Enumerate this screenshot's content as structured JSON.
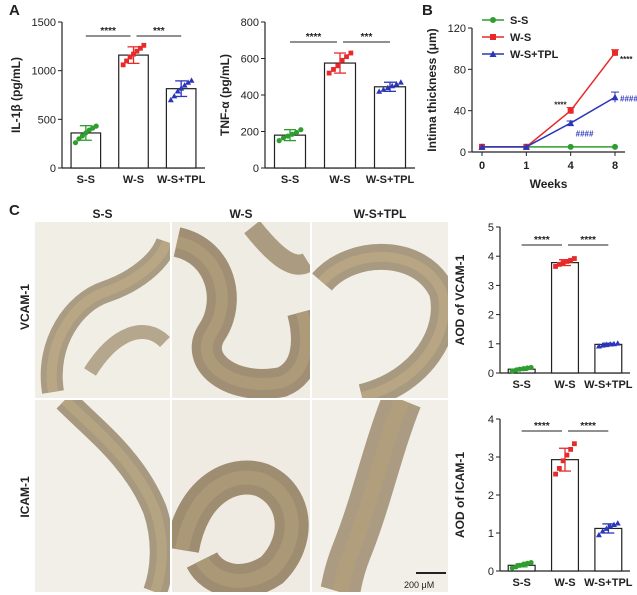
{
  "panels": {
    "a": "A",
    "b": "B",
    "c": "C"
  },
  "micrographs": {
    "columns": [
      "S-S",
      "W-S",
      "W-S+TPL"
    ],
    "rows": [
      "VCAM-1",
      "ICAM-1"
    ],
    "scale_bar": "200 μM"
  },
  "chart_data": [
    {
      "id": "il1b",
      "type": "bar",
      "ylabel": "IL-1β (pg/mL)",
      "categories": [
        "S-S",
        "W-S",
        "W-S+TPL"
      ],
      "values": [
        360,
        1160,
        815
      ],
      "errors": [
        75,
        85,
        80
      ],
      "points": [
        [
          260,
          300,
          330,
          360,
          390,
          410,
          430
        ],
        [
          1060,
          1100,
          1140,
          1170,
          1200,
          1230,
          1260
        ],
        [
          700,
          740,
          790,
          820,
          850,
          880,
          900
        ]
      ],
      "colors": [
        "#2e9e2e",
        "#e8292a",
        "#2b36b8"
      ],
      "ylim": [
        0,
        1500
      ],
      "yticks": [
        0,
        500,
        1000,
        1500
      ],
      "significance": [
        {
          "from": 0,
          "to": 1,
          "label": "****"
        },
        {
          "from": 1,
          "to": 2,
          "label": "***"
        }
      ]
    },
    {
      "id": "tnfa",
      "type": "bar",
      "ylabel": "TNF-α (pg/mL)",
      "categories": [
        "S-S",
        "W-S",
        "W-S+TPL"
      ],
      "values": [
        180,
        575,
        445
      ],
      "errors": [
        30,
        55,
        25
      ],
      "points": [
        [
          150,
          165,
          175,
          185,
          195,
          210
        ],
        [
          520,
          540,
          560,
          590,
          610,
          630
        ],
        [
          420,
          430,
          440,
          450,
          460,
          470
        ]
      ],
      "colors": [
        "#2e9e2e",
        "#e8292a",
        "#2b36b8"
      ],
      "ylim": [
        0,
        800
      ],
      "yticks": [
        0,
        200,
        400,
        600,
        800
      ],
      "significance": [
        {
          "from": 0,
          "to": 1,
          "label": "****"
        },
        {
          "from": 1,
          "to": 2,
          "label": "***"
        }
      ]
    },
    {
      "id": "intima",
      "type": "line",
      "ylabel": "Intima thickness (μm)",
      "xlabel": "Weeks",
      "x": [
        "0",
        "1",
        "4",
        "8"
      ],
      "ylim": [
        0,
        120
      ],
      "yticks": [
        0,
        40,
        80,
        120
      ],
      "legend": "top-left",
      "series": [
        {
          "name": "S-S",
          "color": "#2e9e2e",
          "marker": "circle",
          "values": [
            5,
            5,
            5,
            5
          ],
          "errors": [
            0,
            0,
            0,
            0
          ]
        },
        {
          "name": "W-S",
          "color": "#e8292a",
          "marker": "square",
          "values": [
            5,
            5,
            40,
            96
          ],
          "errors": [
            0,
            0,
            3,
            3
          ]
        },
        {
          "name": "W-S+TPL",
          "color": "#2b36b8",
          "marker": "triangle",
          "values": [
            5,
            5,
            28,
            53
          ],
          "errors": [
            0,
            0,
            2,
            5
          ]
        }
      ],
      "annotations": [
        {
          "x": 2,
          "y": 46,
          "text": "****",
          "side": "left",
          "color": "#222"
        },
        {
          "x": 3,
          "y": 90,
          "text": "****",
          "side": "right",
          "color": "#222"
        },
        {
          "x": 2,
          "y": 18,
          "text": "####",
          "side": "right",
          "color": "#2b36b8"
        },
        {
          "x": 3,
          "y": 52,
          "text": "####",
          "side": "right",
          "color": "#2b36b8"
        }
      ]
    },
    {
      "id": "vcam",
      "type": "bar",
      "ylabel": "AOD of VCAM-1",
      "categories": [
        "S-S",
        "W-S",
        "W-S+TPL"
      ],
      "values": [
        0.13,
        3.78,
        0.98
      ],
      "errors": [
        0.04,
        0.1,
        0.04
      ],
      "points": [
        [
          0.07,
          0.1,
          0.13,
          0.15,
          0.17,
          0.19
        ],
        [
          3.65,
          3.72,
          3.78,
          3.82,
          3.86,
          3.92
        ],
        [
          0.92,
          0.95,
          0.97,
          0.99,
          1.0,
          1.02
        ]
      ],
      "colors": [
        "#2e9e2e",
        "#e8292a",
        "#2b36b8"
      ],
      "ylim": [
        0,
        5
      ],
      "yticks": [
        0,
        1,
        2,
        3,
        4,
        5
      ],
      "significance": [
        {
          "from": 0,
          "to": 1,
          "label": "****"
        },
        {
          "from": 1,
          "to": 2,
          "label": "****"
        }
      ]
    },
    {
      "id": "icam",
      "type": "bar",
      "ylabel": "AOD of ICAM-1",
      "categories": [
        "S-S",
        "W-S",
        "W-S+TPL"
      ],
      "values": [
        0.15,
        2.93,
        1.12
      ],
      "errors": [
        0.04,
        0.3,
        0.12
      ],
      "points": [
        [
          0.08,
          0.11,
          0.15,
          0.18,
          0.2,
          0.22
        ],
        [
          2.55,
          2.7,
          2.9,
          3.05,
          3.2,
          3.35
        ],
        [
          0.95,
          1.05,
          1.12,
          1.18,
          1.22,
          1.26
        ]
      ],
      "colors": [
        "#2e9e2e",
        "#e8292a",
        "#2b36b8"
      ],
      "ylim": [
        0,
        4
      ],
      "yticks": [
        0,
        1,
        2,
        3,
        4
      ],
      "significance": [
        {
          "from": 0,
          "to": 1,
          "label": "****"
        },
        {
          "from": 1,
          "to": 2,
          "label": "****"
        }
      ]
    }
  ]
}
